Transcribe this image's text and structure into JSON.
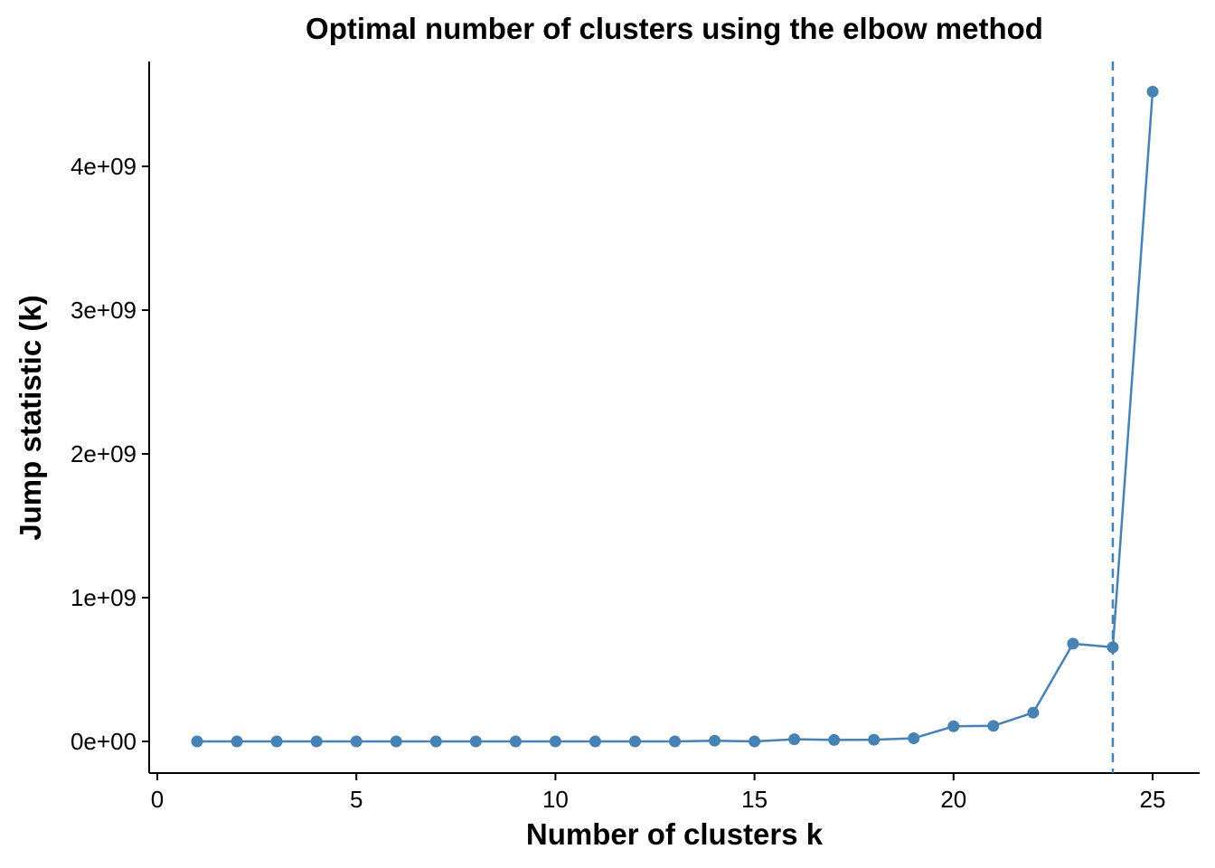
{
  "chart_data": {
    "type": "line",
    "title": "Optimal number of clusters using the elbow method",
    "xlabel": "Number of clusters k",
    "ylabel": "Jump statistic (k)",
    "xlim": [
      0,
      25.5
    ],
    "ylim": [
      0,
      4500000000
    ],
    "x_ticks": [
      0,
      5,
      10,
      15,
      20,
      25
    ],
    "x_tick_labels": [
      "0",
      "5",
      "10",
      "15",
      "20",
      "25"
    ],
    "y_ticks": [
      0,
      1000000000,
      2000000000,
      3000000000,
      4000000000
    ],
    "y_tick_labels": [
      "0e+00",
      "1e+09",
      "2e+09",
      "3e+09",
      "4e+09"
    ],
    "series": [
      {
        "x": [
          1,
          2,
          3,
          4,
          5,
          6,
          7,
          8,
          9,
          10,
          11,
          12,
          13,
          14,
          15,
          16,
          17,
          18,
          19,
          20,
          21,
          22,
          23,
          24,
          25
        ],
        "y": [
          0,
          0,
          0,
          0,
          0,
          0,
          0,
          0,
          0,
          0,
          0,
          0,
          0,
          5000000,
          0,
          15000000,
          10000000,
          12000000,
          22000000,
          105000000,
          108000000,
          200000000,
          680000000,
          655000000,
          4520000000
        ]
      }
    ],
    "vline": {
      "x": 24,
      "style": "dashed"
    },
    "grid": false,
    "legend": "none",
    "colors": {
      "line": "#4682b4",
      "point": "#4682b4",
      "axis": "#000000"
    }
  }
}
